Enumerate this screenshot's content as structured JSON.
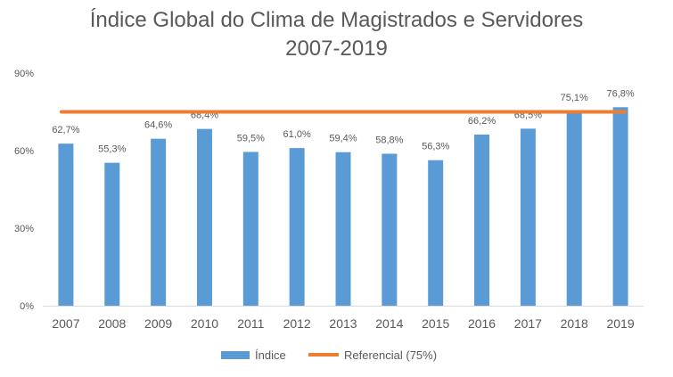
{
  "chart_data": {
    "type": "bar",
    "title": "Índice Global do Clima de Magistrados e Servidores",
    "subtitle": "2007-2019",
    "categories": [
      "2007",
      "2008",
      "2009",
      "2010",
      "2011",
      "2012",
      "2013",
      "2014",
      "2015",
      "2016",
      "2017",
      "2018",
      "2019"
    ],
    "series": [
      {
        "name": "Índice",
        "type": "bar",
        "color": "#5B9BD5",
        "values": [
          62.7,
          55.3,
          64.6,
          68.4,
          59.5,
          61.0,
          59.4,
          58.8,
          56.3,
          66.2,
          68.5,
          75.1,
          76.8
        ],
        "labels": [
          "62,7%",
          "55,3%",
          "64,6%",
          "68,4%",
          "59,5%",
          "61,0%",
          "59,4%",
          "58,8%",
          "56,3%",
          "66,2%",
          "68,5%",
          "75,1%",
          "76,8%"
        ]
      },
      {
        "name": "Referencial (75%)",
        "type": "line",
        "color": "#ED7D31",
        "value": 75
      }
    ],
    "ylim": [
      0,
      90
    ],
    "yticks": [
      0,
      30,
      60,
      90
    ],
    "ytick_labels": [
      "0%",
      "30%",
      "60%",
      "90%"
    ],
    "xlabel": "",
    "ylabel": "",
    "grid": false,
    "legend_position": "bottom"
  }
}
